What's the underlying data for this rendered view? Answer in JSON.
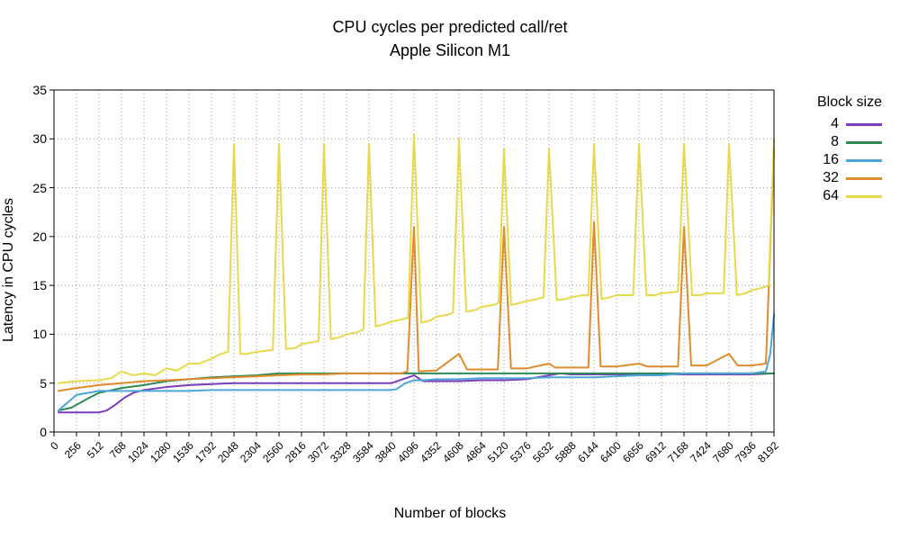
{
  "title": "CPU cycles per predicted call/ret",
  "subtitle": "Apple Silicon M1",
  "xlabel": "Number of blocks",
  "ylabel": "Latency in CPU cycles",
  "legend_title": "Block size",
  "background_color": "#ffffff",
  "grid_color": "#999999",
  "axis_color": "#000000",
  "title_fontsize": 18,
  "label_fontsize": 16,
  "tick_fontsize": 14,
  "xtick_fontsize": 12,
  "line_width": 2,
  "xlim": [
    0,
    8192
  ],
  "ylim": [
    0,
    35
  ],
  "ytick_step": 5,
  "yticks": [
    0,
    5,
    10,
    15,
    20,
    25,
    30,
    35
  ],
  "xticks": [
    0,
    256,
    512,
    768,
    1024,
    1280,
    1536,
    1792,
    2048,
    2304,
    2560,
    2816,
    3072,
    3328,
    3584,
    3840,
    4096,
    4352,
    4608,
    4864,
    5120,
    5376,
    5632,
    5888,
    6144,
    6400,
    6656,
    6912,
    7168,
    7424,
    7680,
    7936,
    8192
  ],
  "series": [
    {
      "name": "4",
      "color": "#7b3db8",
      "data": [
        [
          50,
          2.0
        ],
        [
          256,
          2.0
        ],
        [
          512,
          2.0
        ],
        [
          600,
          2.2
        ],
        [
          700,
          2.8
        ],
        [
          800,
          3.5
        ],
        [
          900,
          4.0
        ],
        [
          1024,
          4.3
        ],
        [
          1280,
          4.6
        ],
        [
          1536,
          4.8
        ],
        [
          1792,
          4.9
        ],
        [
          2048,
          5.0
        ],
        [
          2304,
          5.0
        ],
        [
          2560,
          5.0
        ],
        [
          2816,
          5.0
        ],
        [
          3072,
          5.0
        ],
        [
          3328,
          5.0
        ],
        [
          3584,
          5.0
        ],
        [
          3840,
          5.0
        ],
        [
          4096,
          5.8
        ],
        [
          4200,
          5.2
        ],
        [
          4352,
          5.2
        ],
        [
          4608,
          5.2
        ],
        [
          4864,
          5.3
        ],
        [
          5120,
          5.3
        ],
        [
          5376,
          5.4
        ],
        [
          5632,
          5.8
        ],
        [
          5760,
          6.0
        ],
        [
          5888,
          5.9
        ],
        [
          6144,
          5.9
        ],
        [
          6400,
          5.9
        ],
        [
          6656,
          5.9
        ],
        [
          6912,
          5.9
        ],
        [
          7168,
          5.9
        ],
        [
          7424,
          5.9
        ],
        [
          7680,
          5.9
        ],
        [
          7936,
          5.9
        ],
        [
          8192,
          6.0
        ]
      ]
    },
    {
      "name": "8",
      "color": "#2e8b57",
      "data": [
        [
          50,
          2.2
        ],
        [
          200,
          2.5
        ],
        [
          400,
          3.5
        ],
        [
          512,
          4.0
        ],
        [
          768,
          4.5
        ],
        [
          1024,
          4.8
        ],
        [
          1280,
          5.2
        ],
        [
          1536,
          5.4
        ],
        [
          1792,
          5.6
        ],
        [
          2048,
          5.7
        ],
        [
          2304,
          5.8
        ],
        [
          2560,
          6.0
        ],
        [
          2816,
          6.0
        ],
        [
          3072,
          6.0
        ],
        [
          3328,
          6.0
        ],
        [
          3584,
          6.0
        ],
        [
          3840,
          6.0
        ],
        [
          4096,
          6.0
        ],
        [
          4352,
          6.0
        ],
        [
          4608,
          6.0
        ],
        [
          4864,
          6.0
        ],
        [
          5120,
          6.0
        ],
        [
          5376,
          6.0
        ],
        [
          5632,
          6.0
        ],
        [
          5888,
          6.0
        ],
        [
          6144,
          6.0
        ],
        [
          6400,
          6.0
        ],
        [
          6656,
          6.0
        ],
        [
          6912,
          6.0
        ],
        [
          7168,
          6.0
        ],
        [
          7424,
          6.0
        ],
        [
          7680,
          6.0
        ],
        [
          7936,
          6.0
        ],
        [
          8192,
          6.0
        ]
      ]
    },
    {
      "name": "16",
      "color": "#4da6d9",
      "data": [
        [
          50,
          2.2
        ],
        [
          256,
          3.8
        ],
        [
          512,
          4.2
        ],
        [
          768,
          4.2
        ],
        [
          1024,
          4.2
        ],
        [
          1280,
          4.2
        ],
        [
          1536,
          4.2
        ],
        [
          1792,
          4.3
        ],
        [
          2048,
          4.3
        ],
        [
          2304,
          4.3
        ],
        [
          2560,
          4.3
        ],
        [
          2816,
          4.3
        ],
        [
          3072,
          4.3
        ],
        [
          3328,
          4.3
        ],
        [
          3584,
          4.3
        ],
        [
          3840,
          4.3
        ],
        [
          3900,
          4.4
        ],
        [
          4000,
          5.0
        ],
        [
          4096,
          5.3
        ],
        [
          4200,
          5.3
        ],
        [
          4352,
          5.4
        ],
        [
          4608,
          5.4
        ],
        [
          4864,
          5.5
        ],
        [
          5120,
          5.5
        ],
        [
          5376,
          5.5
        ],
        [
          5632,
          5.6
        ],
        [
          5888,
          5.6
        ],
        [
          6144,
          5.6
        ],
        [
          6400,
          5.7
        ],
        [
          6656,
          5.8
        ],
        [
          6912,
          5.8
        ],
        [
          7168,
          6.0
        ],
        [
          7424,
          6.0
        ],
        [
          7680,
          6.0
        ],
        [
          7936,
          6.0
        ],
        [
          8100,
          6.2
        ],
        [
          8150,
          8.0
        ],
        [
          8192,
          12.0
        ]
      ]
    },
    {
      "name": "32",
      "color": "#e08b2c",
      "data": [
        [
          50,
          4.2
        ],
        [
          256,
          4.5
        ],
        [
          512,
          4.8
        ],
        [
          768,
          5.0
        ],
        [
          1024,
          5.2
        ],
        [
          1280,
          5.3
        ],
        [
          1536,
          5.4
        ],
        [
          1792,
          5.5
        ],
        [
          2048,
          5.6
        ],
        [
          2304,
          5.7
        ],
        [
          2560,
          5.8
        ],
        [
          2816,
          5.9
        ],
        [
          3072,
          5.9
        ],
        [
          3328,
          6.0
        ],
        [
          3584,
          6.0
        ],
        [
          3840,
          6.0
        ],
        [
          3950,
          6.0
        ],
        [
          4020,
          6.2
        ],
        [
          4096,
          21.0
        ],
        [
          4150,
          6.2
        ],
        [
          4352,
          6.3
        ],
        [
          4608,
          8.0
        ],
        [
          4700,
          6.4
        ],
        [
          4864,
          6.4
        ],
        [
          5050,
          6.4
        ],
        [
          5120,
          21.0
        ],
        [
          5200,
          6.5
        ],
        [
          5376,
          6.5
        ],
        [
          5632,
          7.0
        ],
        [
          5700,
          6.6
        ],
        [
          5888,
          6.6
        ],
        [
          6080,
          6.6
        ],
        [
          6144,
          21.5
        ],
        [
          6220,
          6.7
        ],
        [
          6400,
          6.7
        ],
        [
          6656,
          7.0
        ],
        [
          6750,
          6.7
        ],
        [
          6912,
          6.7
        ],
        [
          7100,
          6.7
        ],
        [
          7168,
          21.0
        ],
        [
          7250,
          6.8
        ],
        [
          7424,
          6.8
        ],
        [
          7680,
          8.0
        ],
        [
          7780,
          6.8
        ],
        [
          7936,
          6.8
        ],
        [
          8100,
          7.0
        ],
        [
          8192,
          29.0
        ]
      ]
    },
    {
      "name": "64",
      "color": "#e8d94a",
      "data": [
        [
          50,
          5.0
        ],
        [
          256,
          5.2
        ],
        [
          512,
          5.3
        ],
        [
          650,
          5.5
        ],
        [
          768,
          6.2
        ],
        [
          900,
          5.8
        ],
        [
          1024,
          6.0
        ],
        [
          1150,
          5.8
        ],
        [
          1280,
          6.5
        ],
        [
          1400,
          6.3
        ],
        [
          1536,
          7.0
        ],
        [
          1650,
          7.0
        ],
        [
          1792,
          7.5
        ],
        [
          1900,
          8.0
        ],
        [
          1980,
          8.2
        ],
        [
          2048,
          29.5
        ],
        [
          2120,
          8.0
        ],
        [
          2200,
          8.0
        ],
        [
          2304,
          8.2
        ],
        [
          2400,
          8.3
        ],
        [
          2490,
          8.4
        ],
        [
          2560,
          29.5
        ],
        [
          2640,
          8.5
        ],
        [
          2750,
          8.6
        ],
        [
          2816,
          9.0
        ],
        [
          2950,
          9.2
        ],
        [
          3010,
          9.3
        ],
        [
          3072,
          29.5
        ],
        [
          3150,
          9.5
        ],
        [
          3250,
          9.7
        ],
        [
          3328,
          10.0
        ],
        [
          3450,
          10.2
        ],
        [
          3520,
          10.5
        ],
        [
          3584,
          29.5
        ],
        [
          3660,
          10.8
        ],
        [
          3750,
          11.0
        ],
        [
          3840,
          11.3
        ],
        [
          3950,
          11.5
        ],
        [
          4030,
          11.7
        ],
        [
          4096,
          30.5
        ],
        [
          4180,
          11.2
        ],
        [
          4280,
          11.4
        ],
        [
          4352,
          11.8
        ],
        [
          4480,
          12.0
        ],
        [
          4540,
          12.2
        ],
        [
          4608,
          30.0
        ],
        [
          4690,
          12.3
        ],
        [
          4800,
          12.5
        ],
        [
          4864,
          12.8
        ],
        [
          5000,
          13.0
        ],
        [
          5060,
          13.2
        ],
        [
          5120,
          29.0
        ],
        [
          5200,
          13.0
        ],
        [
          5300,
          13.2
        ],
        [
          5376,
          13.4
        ],
        [
          5500,
          13.6
        ],
        [
          5570,
          13.8
        ],
        [
          5632,
          29.0
        ],
        [
          5720,
          13.5
        ],
        [
          5820,
          13.6
        ],
        [
          5888,
          13.8
        ],
        [
          6020,
          14.0
        ],
        [
          6080,
          14.0
        ],
        [
          6144,
          29.5
        ],
        [
          6230,
          13.6
        ],
        [
          6330,
          13.8
        ],
        [
          6400,
          14.0
        ],
        [
          6530,
          14.0
        ],
        [
          6590,
          14.0
        ],
        [
          6656,
          29.5
        ],
        [
          6740,
          14.0
        ],
        [
          6840,
          14.0
        ],
        [
          6912,
          14.2
        ],
        [
          7050,
          14.3
        ],
        [
          7100,
          14.4
        ],
        [
          7168,
          29.5
        ],
        [
          7260,
          14.0
        ],
        [
          7360,
          14.0
        ],
        [
          7424,
          14.2
        ],
        [
          7560,
          14.2
        ],
        [
          7620,
          14.2
        ],
        [
          7680,
          29.5
        ],
        [
          7770,
          14.0
        ],
        [
          7870,
          14.2
        ],
        [
          7936,
          14.5
        ],
        [
          8070,
          14.8
        ],
        [
          8130,
          15.0
        ],
        [
          8192,
          30.0
        ]
      ]
    }
  ]
}
